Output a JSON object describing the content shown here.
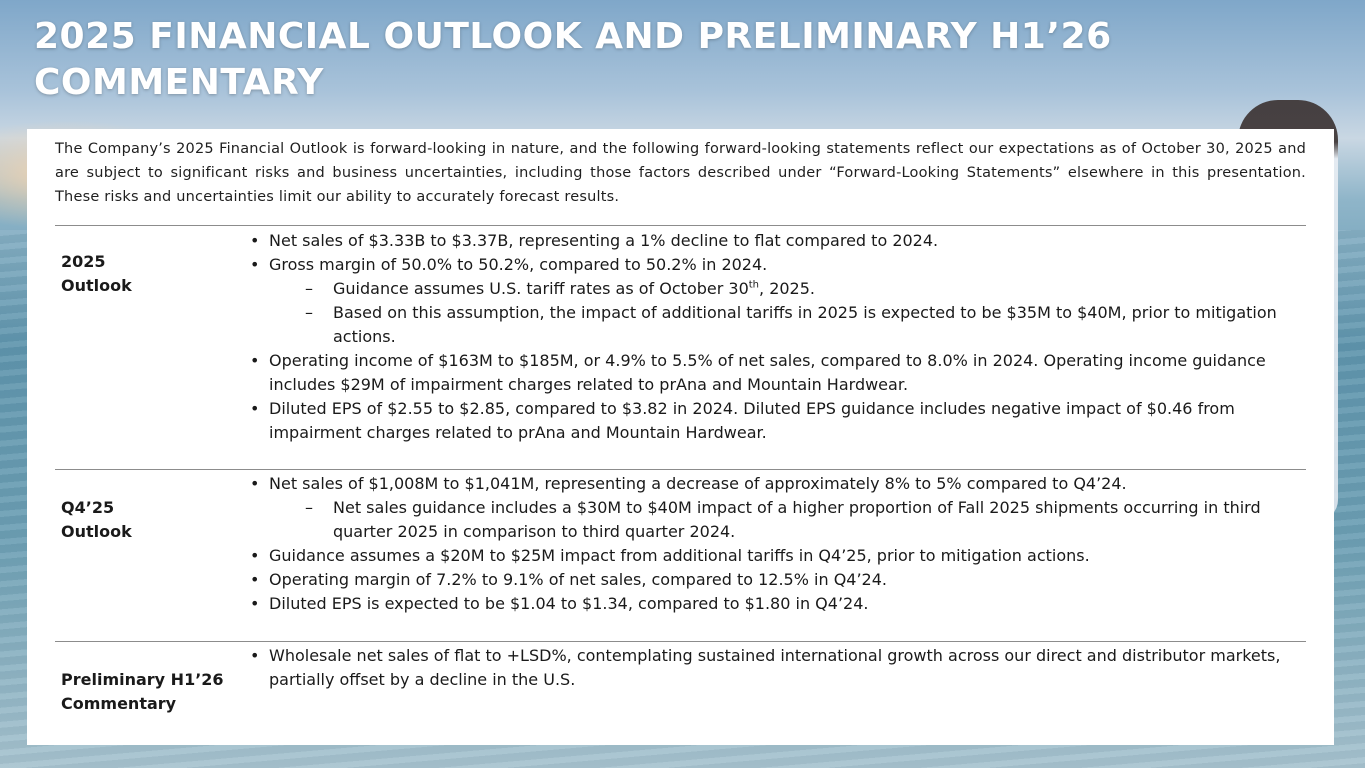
{
  "title": "2025 FINANCIAL OUTLOOK AND PRELIMINARY H1’26 COMMENTARY",
  "intro": "The Company’s 2025 Financial Outlook is forward-looking in nature, and the following forward-looking statements reflect our expectations as of October 30, 2025 and are subject to significant risks and business uncertainties, including those factors described under “Forward-Looking Statements” elsewhere in this presentation. These risks and uncertainties limit our ability to accurately forecast results.",
  "outlook_2025": {
    "label_line1": "2025",
    "label_line2": "Outlook",
    "b1": "Net sales of $3.33B to $3.37B, representing a 1% decline to flat compared to 2024.",
    "b2": "Gross margin of 50.0% to 50.2%, compared to 50.2% in 2024.",
    "b2_sub1_pre": "Guidance assumes U.S. tariff rates as of October 30",
    "b2_sub1_sup": "th",
    "b2_sub1_post": ", 2025.",
    "b2_sub2": "Based on this assumption, the impact of additional tariffs in 2025 is expected to be $35M to $40M, prior to mitigation actions.",
    "b3": "Operating income of $163M to $185M, or 4.9% to 5.5% of net sales, compared to 8.0% in 2024. Operating income guidance includes $29M of impairment charges related to prAna and Mountain Hardwear.",
    "b4": "Diluted EPS of $2.55 to $2.85, compared to $3.82 in 2024. Diluted EPS guidance includes negative impact of $0.46 from impairment charges related to prAna and Mountain Hardwear."
  },
  "outlook_q4": {
    "label_line1": "Q4’25",
    "label_line2": "Outlook",
    "b1": "Net sales of $1,008M to $1,041M, representing a decrease of approximately 8% to 5% compared to Q4’24.",
    "b1_sub1": "Net sales guidance includes a $30M to $40M impact of a higher proportion of Fall 2025 shipments occurring in third quarter 2025 in comparison to third quarter 2024.",
    "b2": "Guidance assumes a $20M to $25M impact from additional tariffs in Q4’25, prior to mitigation actions.",
    "b3": "Operating margin of 7.2% to 9.1% of net sales, compared to 12.5% in Q4’24.",
    "b4": "Diluted EPS is expected to be $1.04 to $1.34, compared to $1.80 in Q4’24."
  },
  "preliminary_h1": {
    "label_line1": "Preliminary H1’26",
    "label_line2": "Commentary",
    "b1": "Wholesale net sales of flat to +LSD%, contemplating sustained international growth across our direct and distributor markets, partially offset by a decline in the U.S."
  }
}
